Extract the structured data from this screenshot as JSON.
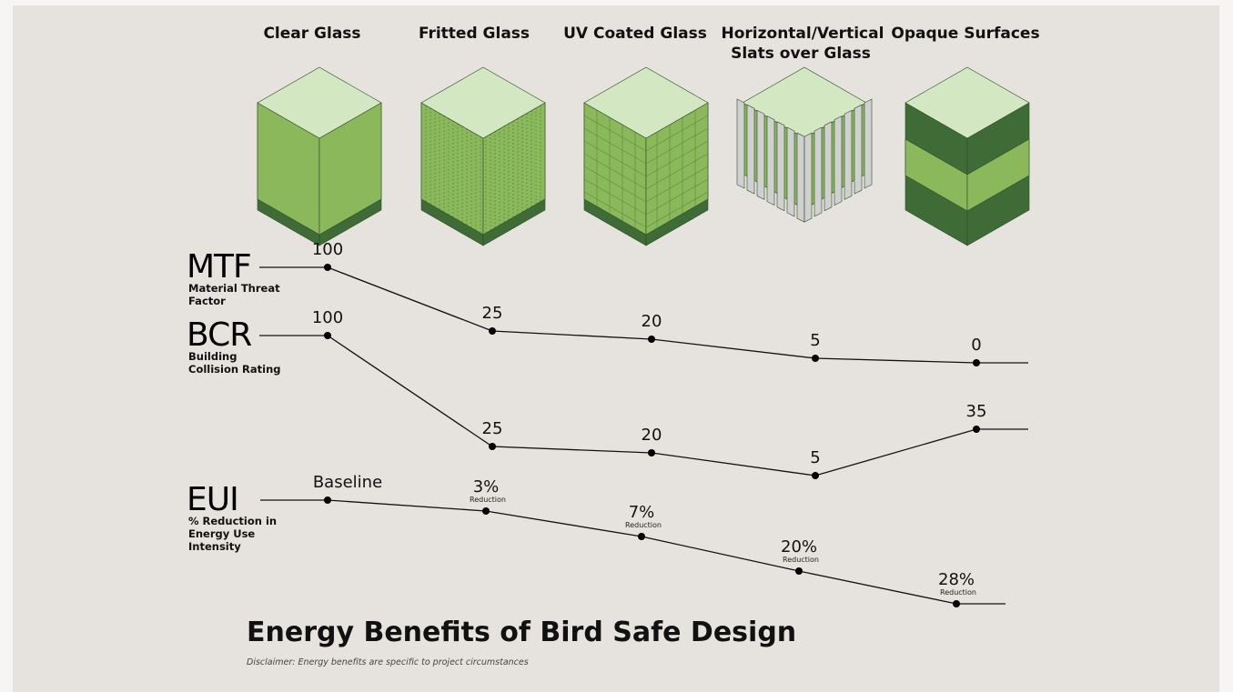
{
  "columns": [
    {
      "label": "Clear Glass"
    },
    {
      "label": "Fritted Glass"
    },
    {
      "label": "UV Coated Glass"
    },
    {
      "label": "Horizontal/Vertical Slats over Glass"
    },
    {
      "label": "Opaque Surfaces"
    }
  ],
  "rows": [
    {
      "abbr": "MTF",
      "name": "Material Threat Factor",
      "values": [
        {
          "value": "100"
        },
        {
          "value": "25"
        },
        {
          "value": "20"
        },
        {
          "value": "5"
        },
        {
          "value": "0"
        }
      ]
    },
    {
      "abbr": "BCR",
      "name": "Building Collision Rating",
      "values": [
        {
          "value": "100"
        },
        {
          "value": "25"
        },
        {
          "value": "20"
        },
        {
          "value": "5"
        },
        {
          "value": "35"
        }
      ]
    },
    {
      "abbr": "EUI",
      "name": "% Reduction in Energy Use Intensity",
      "values": [
        {
          "value": "Baseline"
        },
        {
          "value": "3%",
          "note": "Reduction"
        },
        {
          "value": "7%",
          "note": "Reduction"
        },
        {
          "value": "20%",
          "note": "Reduction"
        },
        {
          "value": "28%",
          "note": "Reduction"
        }
      ]
    }
  ],
  "title": "Energy Benefits of Bird Safe Design",
  "disclaimer": "Disclaimer: Energy benefits are specific to project circumstances"
}
